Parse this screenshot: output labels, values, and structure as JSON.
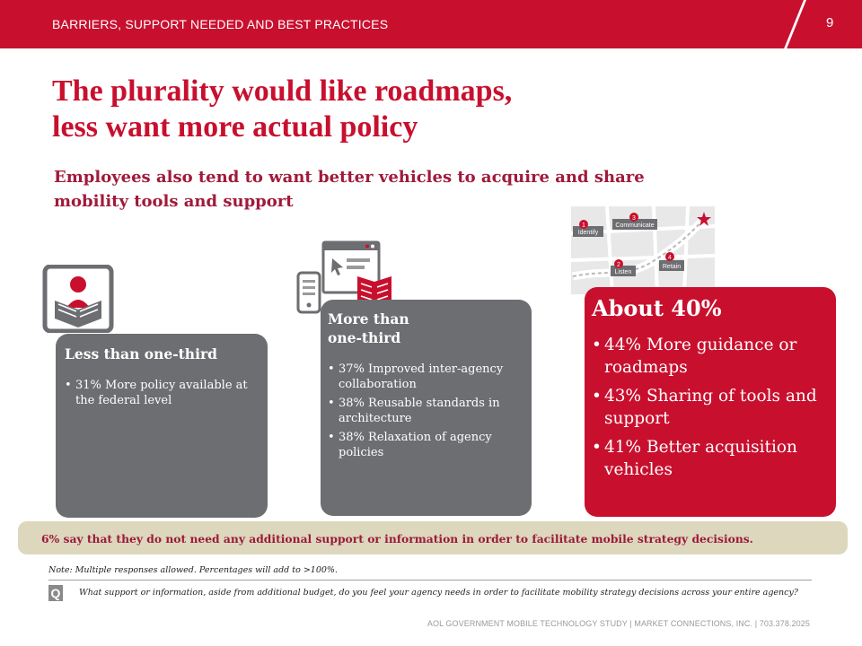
{
  "header": {
    "section": "BARRIERS, SUPPORT NEEDED AND BEST PRACTICES",
    "page_number": "9"
  },
  "title": {
    "line1": "The plurality would like roadmaps,",
    "line2": "less want more actual policy"
  },
  "subtitle": {
    "line1": "Employees also tend to want better vehicles to acquire and share",
    "line2": "mobility tools and support"
  },
  "cards": [
    {
      "heading": "Less than one-third",
      "items": [
        "31% More policy available at the federal level"
      ]
    },
    {
      "heading_line1": "More than",
      "heading_line2": "one-third",
      "items": [
        "37% Improved inter-agency collaboration",
        "38% Reusable standards in architecture",
        "38% Relaxation of agency policies"
      ]
    },
    {
      "heading": "About 40%",
      "items": [
        "44% More guidance or roadmaps",
        "43% Sharing of tools and support",
        "41% Better acquisition vehicles"
      ]
    }
  ],
  "map_labels": {
    "step1": "Identify",
    "step2": "Listen",
    "step3": "Communicate",
    "step4": "Retain",
    "num1": "1",
    "num2": "2",
    "num3": "3",
    "num4": "4"
  },
  "banner": "6% say that they do not need any additional support or information in order to facilitate mobile strategy decisions.",
  "note": "Note: Multiple responses allowed.  Percentages will add to >100%.",
  "question": {
    "badge": "Q",
    "text": "What support or information, aside from additional budget, do you feel your agency needs in order to facilitate mobility strategy decisions across your entire agency?"
  },
  "footer": "AOL GOVERNMENT MOBILE TECHNOLOGY STUDY  |  MARKET CONNECTIONS, INC.  |  703.378.2025",
  "colors": {
    "brand_red": "#c8102e",
    "card_gray": "#6d6e71",
    "banner_beige": "#ddd7bd",
    "subtitle_maroon": "#a01a3a"
  }
}
